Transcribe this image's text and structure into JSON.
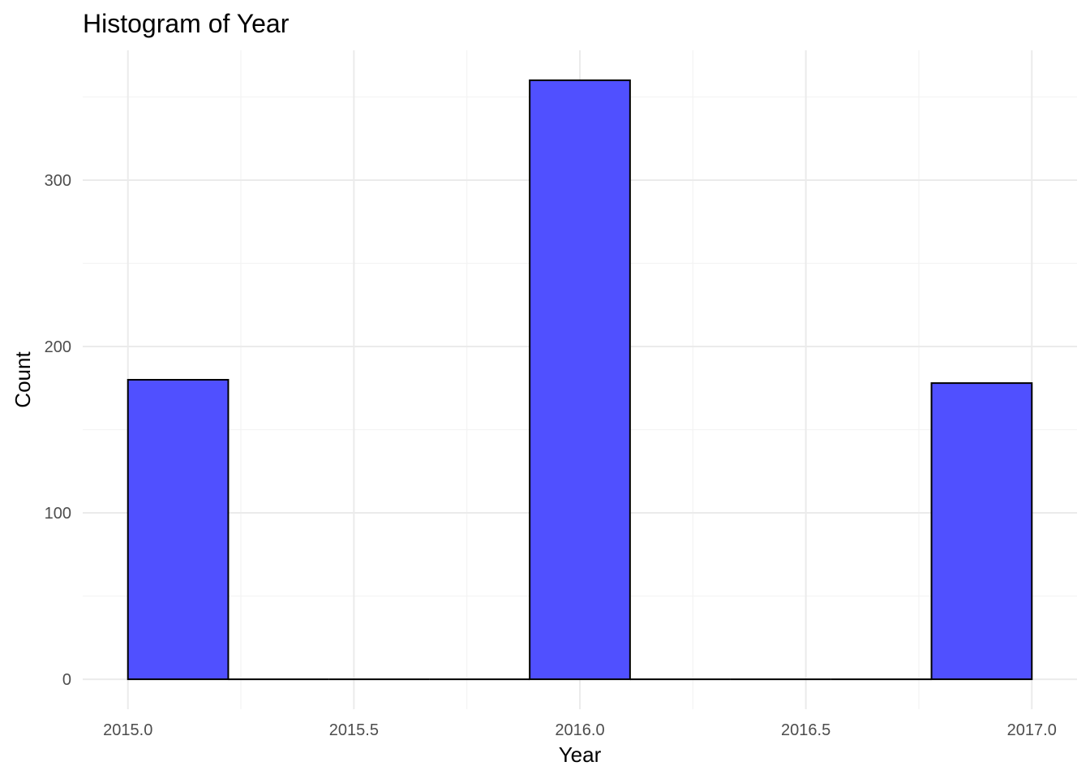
{
  "chart_data": {
    "type": "bar",
    "title": "Histogram of Year",
    "xlabel": "Year",
    "ylabel": "Count",
    "bins": [
      {
        "x0": 2015.0,
        "x1": 2015.222,
        "count": 180
      },
      {
        "x0": 2015.222,
        "x1": 2015.444,
        "count": 0
      },
      {
        "x0": 2015.444,
        "x1": 2015.667,
        "count": 0
      },
      {
        "x0": 2015.667,
        "x1": 2015.889,
        "count": 0
      },
      {
        "x0": 2015.889,
        "x1": 2016.111,
        "count": 360
      },
      {
        "x0": 2016.111,
        "x1": 2016.333,
        "count": 0
      },
      {
        "x0": 2016.333,
        "x1": 2016.556,
        "count": 0
      },
      {
        "x0": 2016.556,
        "x1": 2016.778,
        "count": 0
      },
      {
        "x0": 2016.778,
        "x1": 2017.0,
        "count": 178
      }
    ],
    "xlim": [
      2014.9,
      2017.1
    ],
    "ylim": [
      -18,
      378
    ],
    "x_ticks": [
      "2015.0",
      "2015.5",
      "2016.0",
      "2016.5",
      "2017.0"
    ],
    "y_ticks": [
      "0",
      "100",
      "200",
      "300"
    ],
    "grid": true,
    "colors": {
      "fill": "#5050ff",
      "outline": "#000000"
    }
  }
}
